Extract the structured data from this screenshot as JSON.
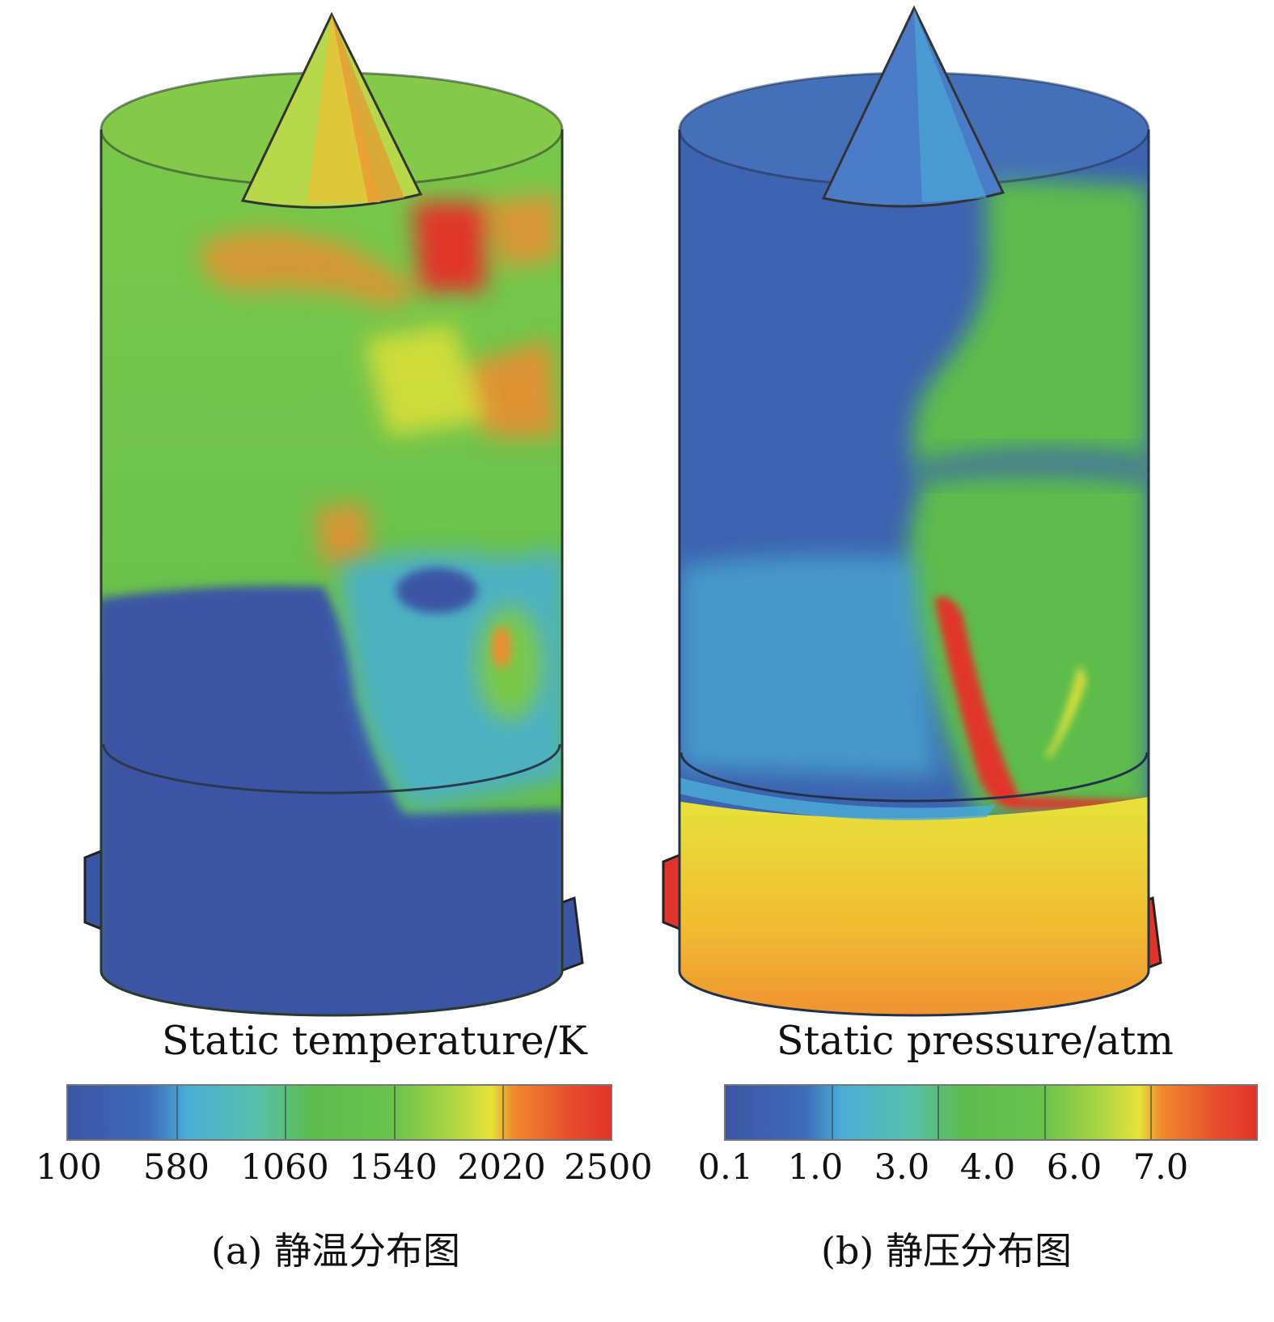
{
  "panels": [
    {
      "colorbar_title": "Static temperature/K",
      "ticks": [
        "100",
        "580",
        "1060",
        "1540",
        "2020",
        "2500"
      ],
      "caption": "(a) 静温分布图"
    },
    {
      "colorbar_title": "Static pressure/atm",
      "ticks": [
        "0.1",
        "1.0",
        "3.0",
        "4.0",
        "6.0",
        "7.0"
      ],
      "caption": "(b) 静压分布图"
    }
  ],
  "colors": {
    "blue": "#3a55a4",
    "light_blue": "#4aaed8",
    "green": "#5cbd4c",
    "yellow": "#e6e23a",
    "orange": "#f08a2e",
    "red": "#e0342a"
  }
}
